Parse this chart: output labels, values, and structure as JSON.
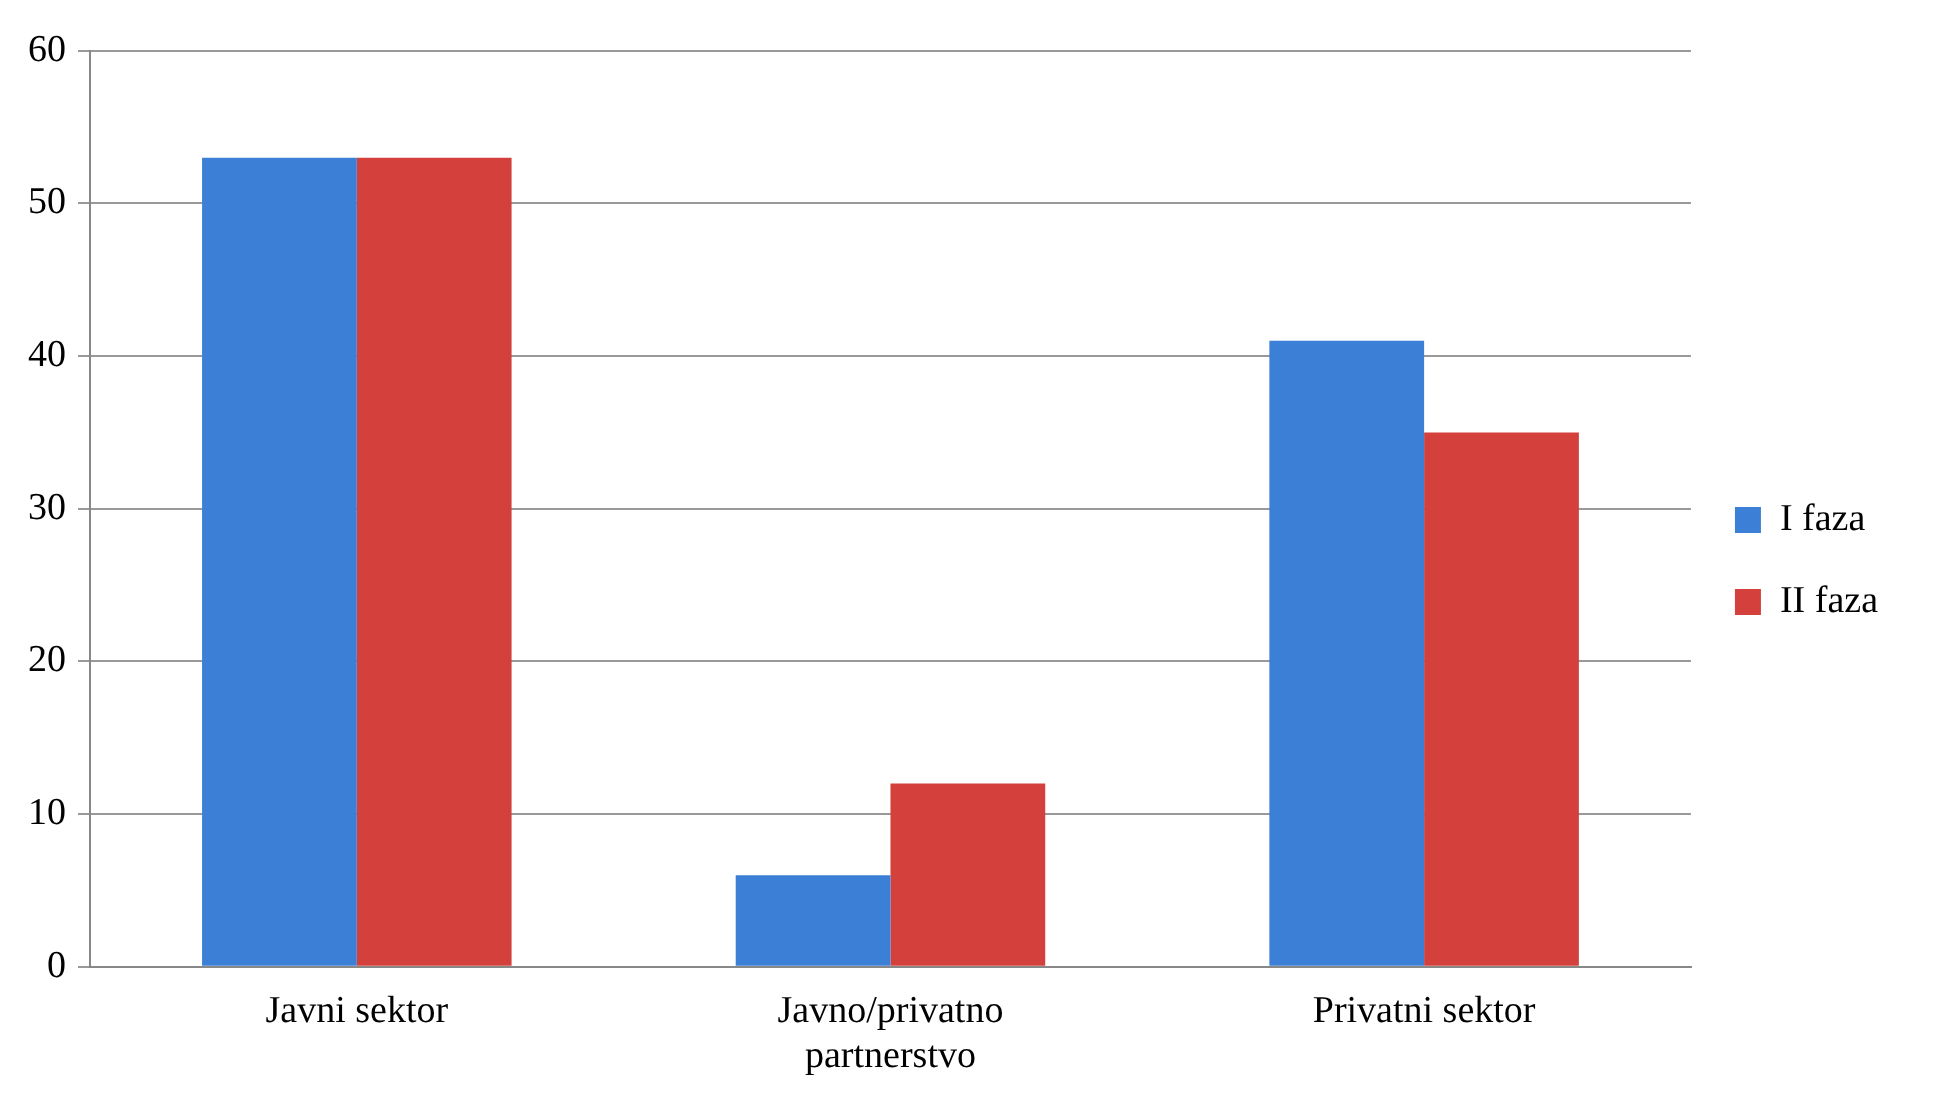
{
  "chart_data": {
    "type": "bar",
    "categories": [
      "Javni sektor",
      "Javno/privatno partnerstvo",
      "Privatni sektor"
    ],
    "series": [
      {
        "name": "I faza",
        "color": "#3b7fd6",
        "values": [
          53,
          6,
          41
        ]
      },
      {
        "name": "II faza",
        "color": "#d4403c",
        "values": [
          53,
          12,
          35
        ]
      }
    ],
    "ylim": [
      0,
      60
    ],
    "yticks": [
      0,
      10,
      20,
      30,
      40,
      50,
      60
    ],
    "grid": "y",
    "legend": "right"
  }
}
